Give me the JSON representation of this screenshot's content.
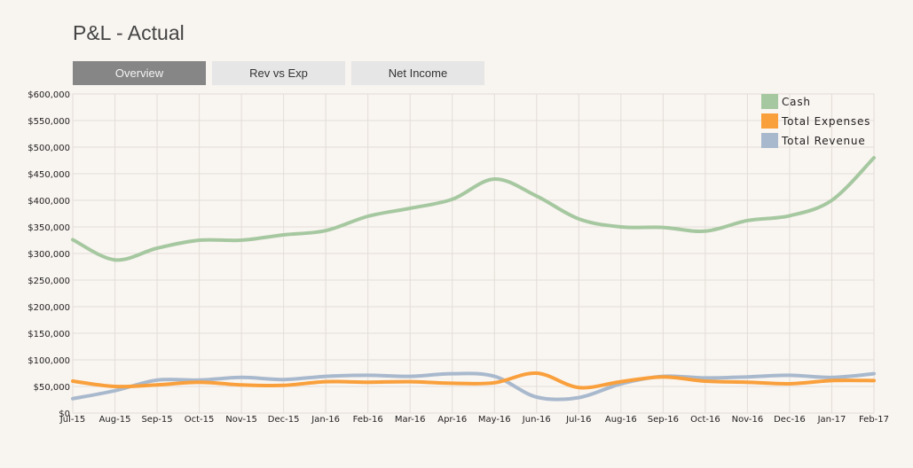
{
  "page": {
    "title": "P&L - Actual"
  },
  "tabs": [
    {
      "label": "Overview",
      "active": true
    },
    {
      "label": "Rev vs Exp",
      "active": false
    },
    {
      "label": "Net Income",
      "active": false
    }
  ],
  "chart_data": {
    "type": "line",
    "categories": [
      "Jul-15",
      "Aug-15",
      "Sep-15",
      "Oct-15",
      "Nov-15",
      "Dec-15",
      "Jan-16",
      "Feb-16",
      "Mar-16",
      "Apr-16",
      "May-16",
      "Jun-16",
      "Jul-16",
      "Aug-16",
      "Sep-16",
      "Oct-16",
      "Nov-16",
      "Dec-16",
      "Jan-17",
      "Feb-17"
    ],
    "yticks": [
      "$0",
      "$50,000",
      "$100,000",
      "$150,000",
      "$200,000",
      "$250,000",
      "$300,000",
      "$350,000",
      "$400,000",
      "$450,000",
      "$500,000",
      "$550,000",
      "$600,000"
    ],
    "ylim": [
      0,
      600000
    ],
    "grid": true,
    "legend_position": "top-right",
    "series": [
      {
        "name": "Cash",
        "color": "#a6c8a0",
        "values": [
          326000,
          288000,
          310000,
          325000,
          325000,
          335000,
          343000,
          370000,
          385000,
          402000,
          440000,
          408000,
          365000,
          350000,
          349000,
          342000,
          362000,
          371000,
          400000,
          480000
        ]
      },
      {
        "name": "Total Expenses",
        "color": "#f9a03c",
        "values": [
          60000,
          50000,
          53000,
          58000,
          53000,
          52000,
          59000,
          58000,
          59000,
          56000,
          57000,
          75000,
          48000,
          59000,
          68000,
          60000,
          58000,
          55000,
          61000,
          61000
        ]
      },
      {
        "name": "Total Revenue",
        "color": "#a9b9cd",
        "values": [
          27000,
          42000,
          62000,
          62000,
          67000,
          63000,
          69000,
          71000,
          69000,
          74000,
          69000,
          30000,
          29000,
          55000,
          69000,
          66000,
          68000,
          71000,
          67000,
          74000
        ]
      }
    ]
  }
}
